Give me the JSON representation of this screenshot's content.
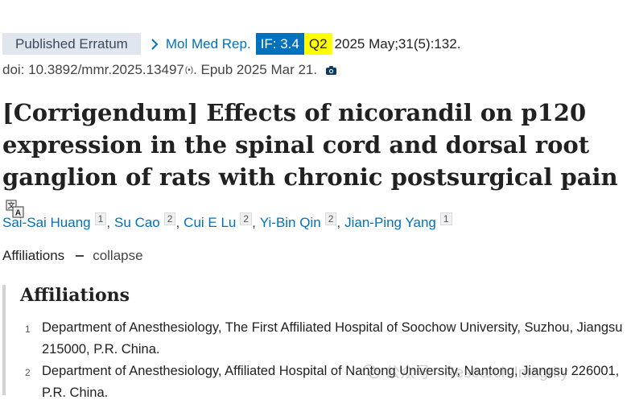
{
  "header": {
    "erratum_badge": "Published Erratum",
    "journal": "Mol Med Rep.",
    "impact_factor": "IF: 3.4",
    "quartile": "Q2",
    "citation": "2025 May;31(5):132.",
    "doi": "doi: 10.3892/mmr.2025.13497",
    "epub": ". Epub 2025 Mar 21."
  },
  "article": {
    "title": "[Corrigendum] Effects of nicorandil on p120 expression in the spinal cord and dorsal root ganglion of rats with chronic postsurgical pain"
  },
  "authors": [
    {
      "name": "Sai-Sai Huang",
      "aff": "1",
      "sep": ","
    },
    {
      "name": "Su Cao",
      "aff": "2",
      "sep": ","
    },
    {
      "name": "Cui E Lu",
      "aff": "2",
      "sep": ","
    },
    {
      "name": "Yi-Bin Qin",
      "aff": "2",
      "sep": ","
    },
    {
      "name": "Jian-Ping Yang",
      "aff": "1",
      "sep": ""
    }
  ],
  "affiliations_toggle": {
    "label": "Affiliations",
    "action": "collapse"
  },
  "affiliations": {
    "heading": "Affiliations",
    "items": [
      {
        "num": "1",
        "text": "Department of Anesthesiology, The First Affiliated Hospital of Soochow University, Suzhou, Jiangsu 215000, P.R. China."
      },
      {
        "num": "2",
        "text": "Department of Anesthesiology, Affiliated Hospital of Nantong University, Nantong, Jiangsu 226001, P.R. China."
      }
    ]
  },
  "watermark": {
    "text": "公众号 · Research Integrity"
  },
  "icons": {
    "chevron": "chevron-right-icon",
    "doi_link": "broadcast-icon",
    "camera": "camera-icon",
    "translate": "translate-icon"
  },
  "colors": {
    "link": "#0071bc",
    "if_badge_bg": "#0071bc",
    "quartile_bg": "#ffff00",
    "erratum_bg": "#dfe6ee"
  }
}
